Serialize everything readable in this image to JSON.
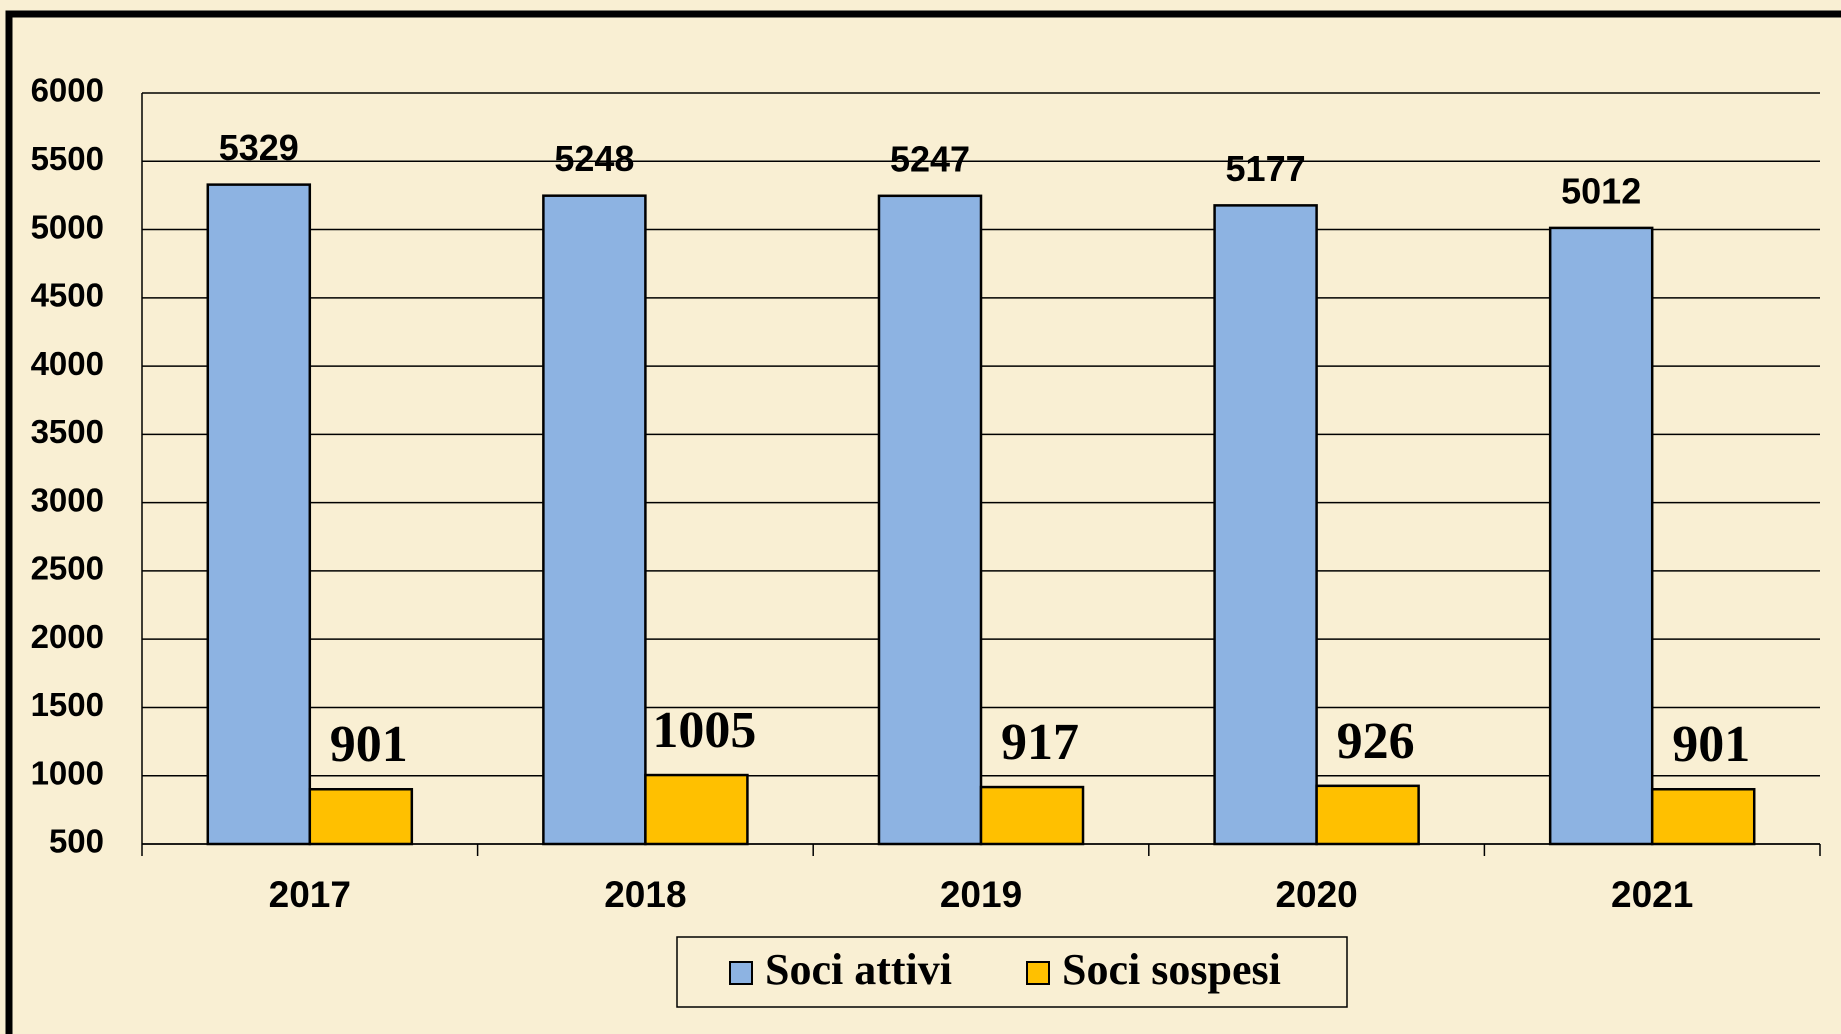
{
  "chart_data": {
    "type": "bar",
    "categories": [
      "2017",
      "2018",
      "2019",
      "2020",
      "2021"
    ],
    "series": [
      {
        "name": "Soci attivi",
        "color": "#8db3e2",
        "values": [
          5329,
          5248,
          5247,
          5177,
          5012
        ]
      },
      {
        "name": "Soci sospesi",
        "color": "#ffc000",
        "values": [
          901,
          1005,
          917,
          926,
          901
        ]
      }
    ],
    "ylim": [
      500,
      6000
    ],
    "yticks": [
      500,
      1000,
      1500,
      2000,
      2500,
      3000,
      3500,
      4000,
      4500,
      5000,
      5500,
      6000
    ],
    "grid": true,
    "legend": "bottom"
  }
}
